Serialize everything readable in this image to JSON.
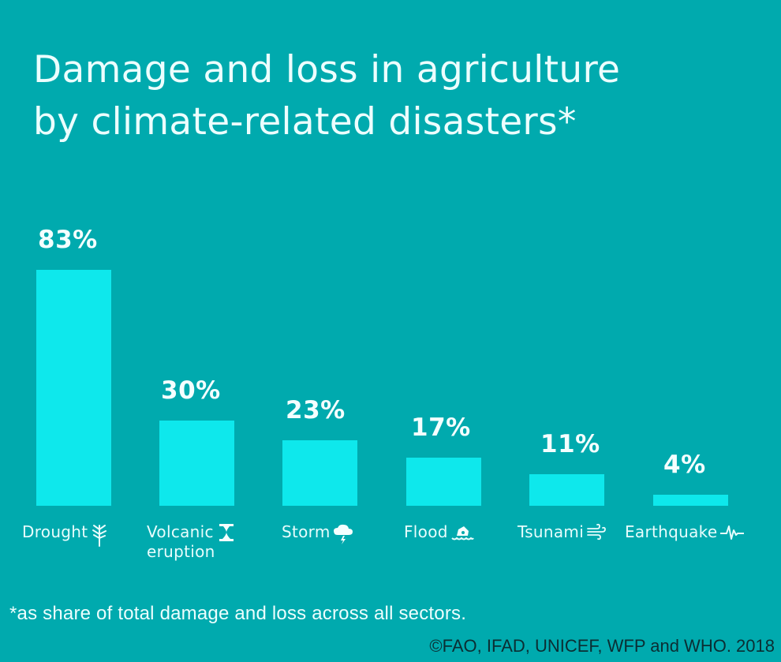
{
  "header": {
    "title_line1": "Damage and loss in agriculture",
    "title_line2": "by climate-related disasters*"
  },
  "bars": [
    {
      "label": "Drought",
      "label2": "",
      "value": 83,
      "value_label": "83%",
      "icon": "tree-icon"
    },
    {
      "label": "Volcanic",
      "label2": "eruption",
      "value": 30,
      "value_label": "30%",
      "icon": "volcano-icon"
    },
    {
      "label": "Storm",
      "label2": "",
      "value": 23,
      "value_label": "23%",
      "icon": "storm-cloud-icon"
    },
    {
      "label": "Flood",
      "label2": "",
      "value": 17,
      "value_label": "17%",
      "icon": "flood-house-icon"
    },
    {
      "label": "Tsunami",
      "label2": "",
      "value": 11,
      "value_label": "11%",
      "icon": "wave-icon"
    },
    {
      "label": "Earthquake",
      "label2": "",
      "value": 4,
      "value_label": "4%",
      "icon": "seismograph-icon"
    }
  ],
  "footer": {
    "footnote": "*as share of total damage and loss across all sectors.",
    "credit": "©FAO, IFAD, UNICEF, WFP and WHO. 2018"
  },
  "colors": {
    "background": "#00AAAE",
    "bar": "#0EE8EC",
    "text": "#ECFEFE",
    "credit_text": "#0B2E33"
  },
  "chart_data": {
    "type": "bar",
    "title": "Damage and loss in agriculture by climate-related disasters*",
    "categories": [
      "Drought",
      "Volcanic eruption",
      "Storm",
      "Flood",
      "Tsunami",
      "Earthquake"
    ],
    "values": [
      83,
      30,
      23,
      17,
      11,
      4
    ],
    "unit": "%",
    "xlabel": "",
    "ylabel": "",
    "grid": false,
    "legend": "none",
    "annotations": [
      "*as share of total damage and loss across all sectors.",
      "©FAO, IFAD, UNICEF, WFP and WHO. 2018"
    ]
  }
}
